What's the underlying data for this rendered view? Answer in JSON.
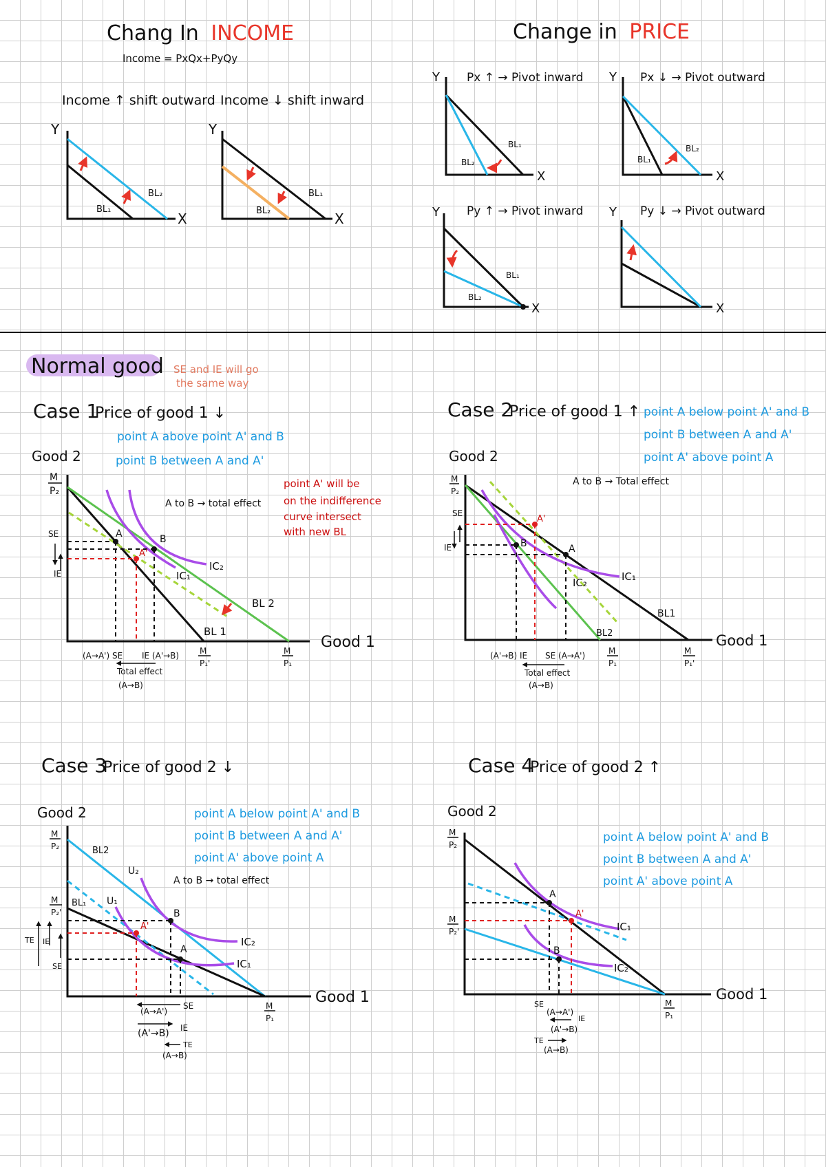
{
  "top": {
    "income": {
      "title_prefix": "Chang In",
      "title_word": "INCOME",
      "formula": "Income = PxQx+PyQy",
      "left": {
        "caption": "Income ↑ shift outward",
        "y": "Y",
        "x": "X",
        "bl1": "BL₁",
        "bl2": "BL₂"
      },
      "right": {
        "caption": "Income ↓ shift inward",
        "y": "Y",
        "x": "X",
        "bl1": "BL₁",
        "bl2": "BL₂"
      }
    },
    "price": {
      "title_prefix": "Change in",
      "title_word": "PRICE",
      "px_up": {
        "caption": "Px ↑ → Pivot inward",
        "y": "Y",
        "x": "X",
        "bl1": "BL₁",
        "bl2": "BL₂"
      },
      "px_down": {
        "caption": "Px ↓ → Pivot outward",
        "y": "Y",
        "x": "X",
        "bl1": "BL₁",
        "bl2": "BL₂"
      },
      "py_up": {
        "caption": "Py ↑ → Pivot inward",
        "y": "Y",
        "x": "X",
        "bl1": "BL₁",
        "bl2": "BL₂"
      },
      "py_down": {
        "caption": "Py ↓ → Pivot outward",
        "y": "Y",
        "x": "X"
      }
    }
  },
  "normal": {
    "title": "Normal good",
    "note": [
      "SE and IE will go",
      "the same way"
    ],
    "case1": {
      "label": "Case 1",
      "desc": "Price of good 1 ↓",
      "notes": [
        "point A above point A' and B",
        "point B between A and A'"
      ],
      "red_note": [
        "point A' will be",
        "on the indifference",
        "curve intersect",
        "with new BL"
      ],
      "good2": "Good 2",
      "good1": "Good 1",
      "y_num": "M",
      "y_den": "P₂",
      "x1_num": "M",
      "x1_den": "P₁'",
      "x2_num": "M",
      "x2_den": "P₁",
      "total": "A to B → total effect",
      "se": "SE",
      "ie": "IE",
      "pt_a": "A",
      "pt_b": "B",
      "pt_a2": "A'",
      "ic1": "IC₁",
      "ic2": "IC₂",
      "bl1": "BL 1",
      "bl2": "BL 2",
      "se_tag": "(A→A') SE",
      "ie_tag": "IE (A'→B)",
      "te_tag1": "Total effect",
      "te_tag2": "(A→B)"
    },
    "case2": {
      "label": "Case 2",
      "desc": "Price of good 1 ↑",
      "notes": [
        "point A below point A' and B",
        "point B between A and A'",
        "point A' above point A"
      ],
      "good2": "Good 2",
      "good1": "Good 1",
      "y_num": "M",
      "y_den": "P₂",
      "x1_num": "M",
      "x1_den": "P₁",
      "x2_num": "M",
      "x2_den": "P₁'",
      "total": "A to B → Total effect",
      "se": "SE",
      "ie": "IE",
      "pt_a": "A",
      "pt_b": "B",
      "pt_a2": "A'",
      "ic1": "IC₁",
      "ic2": "IC₂",
      "bl1": "BL1",
      "bl2": "BL2",
      "se_tag": "SE (A→A')",
      "ie_tag": "(A'→B) IE",
      "te_tag1": "Total effect",
      "te_tag2": "(A→B)"
    },
    "case3": {
      "label": "Case 3",
      "desc": "Price of good 2 ↓",
      "notes": [
        "point A below point A' and B",
        "point B between A and A'",
        "point A' above point A"
      ],
      "good2": "Good 2",
      "good1": "Good 1",
      "y1_num": "M",
      "y1_den": "P₂",
      "y2_num": "M",
      "y2_den": "P₂'",
      "x_num": "M",
      "x_den": "P₁",
      "total": "A to B → total effect",
      "se": "SE",
      "ie": "IE",
      "te": "TE",
      "pt_a": "A",
      "pt_b": "B",
      "pt_a2": "A'",
      "ic1": "IC₁",
      "ic2": "IC₂",
      "u1": "U₁",
      "u2": "U₂",
      "bl1": "BL₁",
      "bl2": "BL2",
      "se_tag": "(A→A')",
      "ie_tag": "(A'→B)",
      "te_tag": "(A→B)",
      "se_lbl": "SE",
      "ie_lbl": "IE",
      "te_lbl": "TE"
    },
    "case4": {
      "label": "Case 4",
      "desc": "Price of good 2 ↑",
      "notes": [
        "point A below point A' and B",
        "point B between A and A'",
        "point A' above point A"
      ],
      "good2": "Good 2",
      "good1": "Good 1",
      "y1_num": "M",
      "y1_den": "P₂",
      "y2_num": "M",
      "y2_den": "P₂'",
      "x_num": "M",
      "x_den": "P₁",
      "se": "SE",
      "pt_a": "A",
      "pt_b": "B",
      "pt_a2": "A'",
      "ic1": "IC₁",
      "ic2": "IC₂",
      "se_tag": "(A→A')",
      "ie_tag": "(A'→B)",
      "te_tag": "(A→B)",
      "ie_lbl": "IE",
      "te_lbl": "TE"
    }
  }
}
